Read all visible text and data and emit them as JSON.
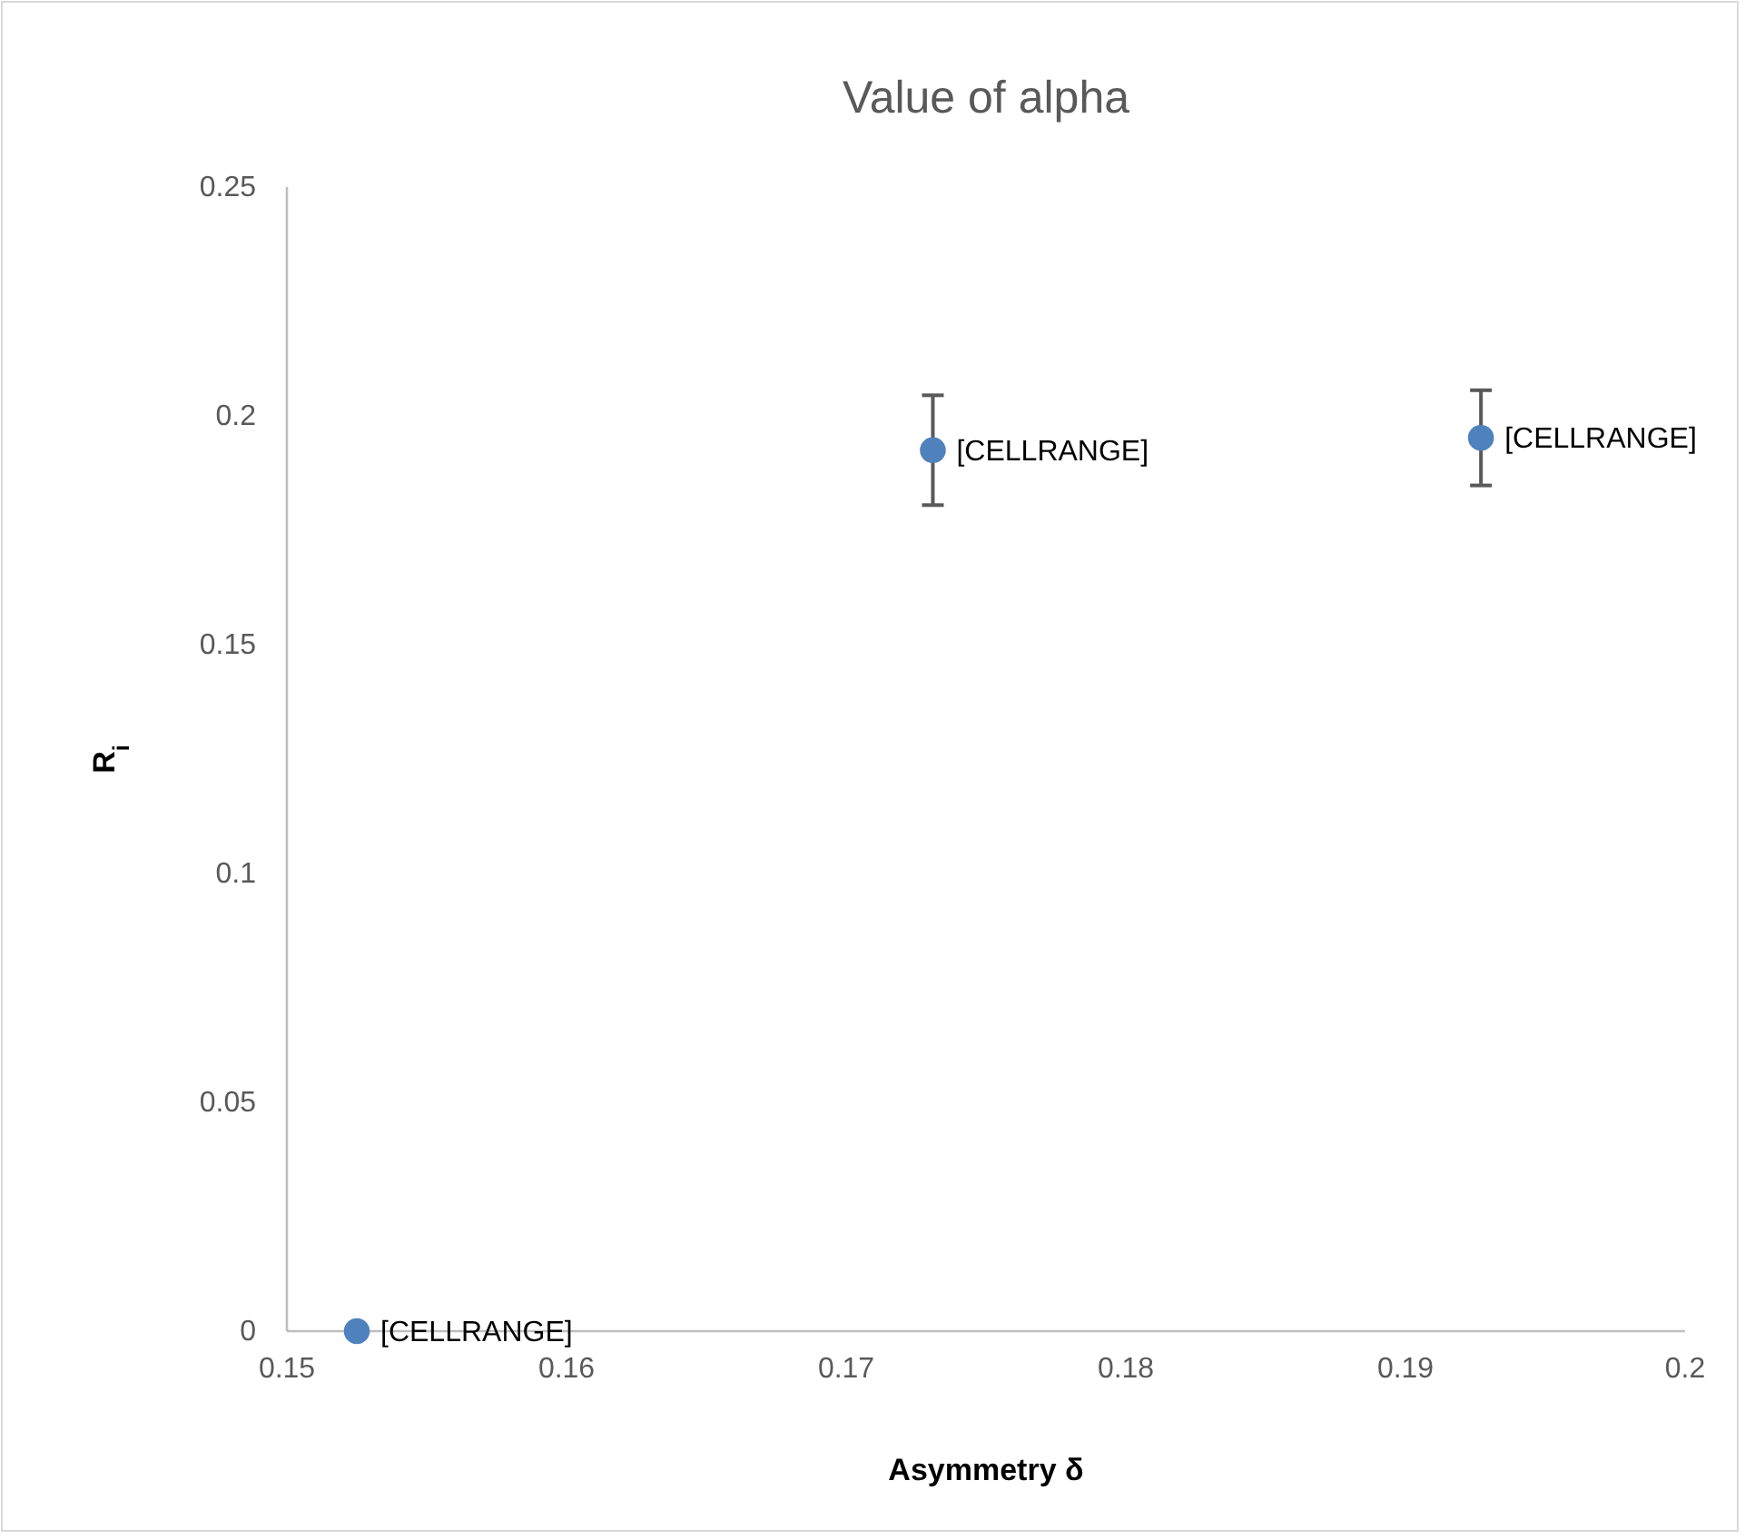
{
  "chart_data": {
    "type": "scatter",
    "title": "Value of alpha",
    "xlabel": "Asymmetry δ",
    "ylabel": "R$_{i}$",
    "x": [
      0.1525,
      0.1731,
      0.1927
    ],
    "values": [
      0,
      0.1925,
      0.1952
    ],
    "errors": [
      null,
      0.012,
      0.0104
    ],
    "value_labels": [
      "[CELLRANGE]",
      "[CELLRANGE]",
      "[CELLRANGE]"
    ],
    "color": "#4f81bd",
    "marker": "circle",
    "xlim": [
      0.15,
      0.2
    ],
    "xticks": [
      0.15,
      0.16,
      0.17,
      0.18,
      0.19,
      0.2
    ],
    "ylim": [
      0,
      0.25
    ],
    "yticks": [
      0,
      0.05,
      0.1,
      0.15,
      0.2,
      0.25
    ]
  }
}
